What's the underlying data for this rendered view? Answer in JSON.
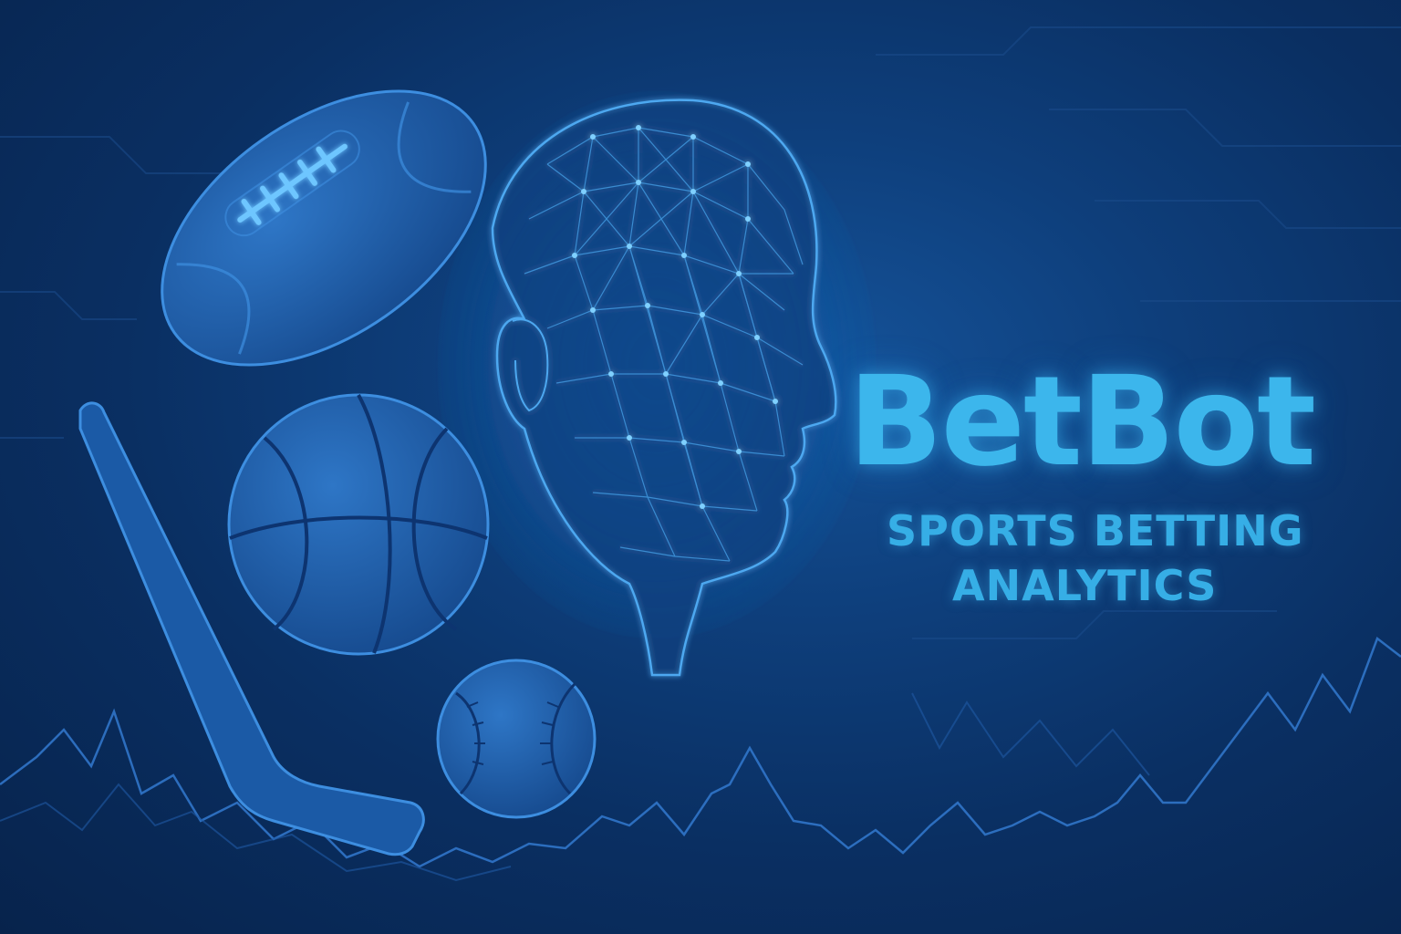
{
  "brand": {
    "name": "BetBot",
    "tagline_line1": "SPORTS BETTING",
    "tagline_line2": "ANALYTICS"
  },
  "colors": {
    "background": "#0a2f62",
    "accent": "#3cb6ec",
    "illustration": "#3d8ee0",
    "network": "#5fc3ff"
  },
  "illustrations": [
    "american-football",
    "hockey-stick",
    "basketball",
    "baseball",
    "wireframe-head",
    "data-line"
  ]
}
